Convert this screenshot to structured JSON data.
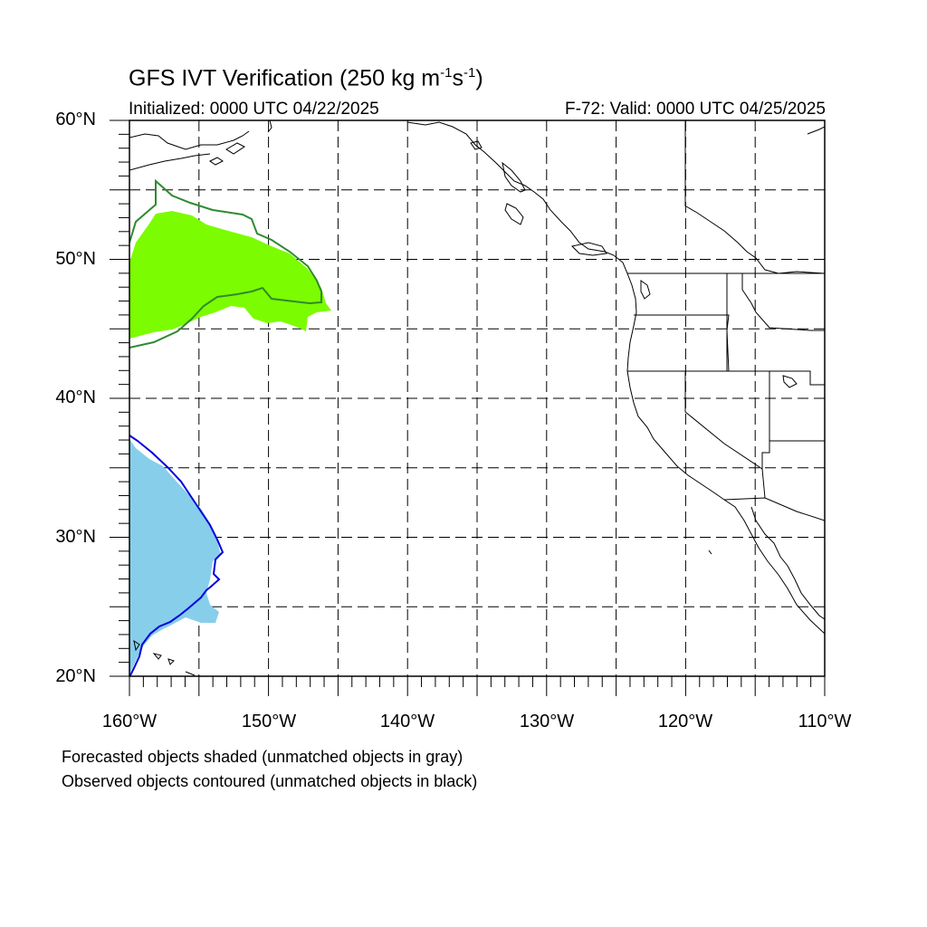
{
  "title": {
    "main": "GFS IVT Verification (250 kg m",
    "sup1": "-1",
    "mid": "s",
    "sup2": "-1",
    "end": ")"
  },
  "initialized": "Initialized: 0000 UTC 04/22/2025",
  "valid": "F-72: Valid: 0000 UTC 04/25/2025",
  "lat_labels": [
    "60°N",
    "50°N",
    "40°N",
    "30°N",
    "20°N"
  ],
  "lon_labels": [
    "160°W",
    "150°W",
    "140°W",
    "130°W",
    "120°W",
    "110°W"
  ],
  "notes": [
    "Forecasted objects shaded (unmatched objects in gray)",
    "Observed objects contoured (unmatched objects in black)"
  ],
  "colors": {
    "forecast_object_1": "#7cfc00",
    "observed_object_1": "#2e8b2e",
    "forecast_object_2": "#87ceeb",
    "observed_object_2": "#0000dd"
  }
}
